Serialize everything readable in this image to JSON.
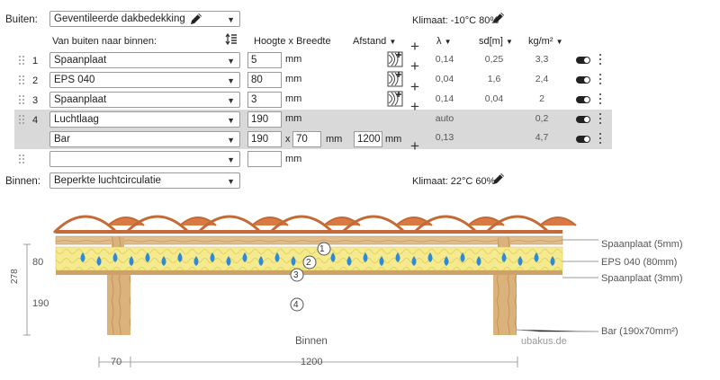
{
  "outside": {
    "label": "Buiten:",
    "value": "Geventileerde dakbedekking",
    "climate": "Klimaat: -10°C 80%"
  },
  "inside": {
    "label": "Binnen:",
    "value": "Beperkte luchtcirculatie",
    "climate": "Klimaat: 22°C 60%"
  },
  "columns": {
    "layers": "Van buiten naar binnen:",
    "size": "Hoogte x Breedte",
    "spacing": "Afstand",
    "lambda": "λ",
    "sd": "sd[m]",
    "density": "kg/m²"
  },
  "layers": [
    {
      "index": "1",
      "material": "Spaanplaat",
      "thickness": "5",
      "unit": "mm",
      "lambda": "0,14",
      "sd": "0,25",
      "density": "3,3"
    },
    {
      "index": "2",
      "material": "EPS 040",
      "thickness": "80",
      "unit": "mm",
      "lambda": "0,04",
      "sd": "1,6",
      "density": "2,4"
    },
    {
      "index": "3",
      "material": "Spaanplaat",
      "thickness": "3",
      "unit": "mm",
      "lambda": "0,14",
      "sd": "0,04",
      "density": "2"
    },
    {
      "index": "4",
      "material": "Luchtlaag",
      "thickness": "190",
      "unit": "mm",
      "lambda": "auto",
      "sd": "",
      "density": "0,2"
    }
  ],
  "bar": {
    "material": "Bar",
    "height": "190",
    "x": "x",
    "width": "70",
    "unit": "mm",
    "spacing": "1200",
    "spacing_unit": "mm",
    "lambda": "0,13",
    "density": "4,7"
  },
  "empty_row": {
    "unit": "mm"
  },
  "drawing": {
    "labels": [
      "Spaanplaat (5mm)",
      "EPS 040 (80mm)",
      "Spaanplaat (3mm)",
      "Bar (190x70mm²)"
    ],
    "markers": [
      "1",
      "2",
      "3",
      "4"
    ],
    "dim_left_total": "278",
    "dim_left_top": "80",
    "dim_left_bottom": "190",
    "inside_label": "Binnen",
    "watermark": "ubakus.de",
    "dim_bottom_bar": "70",
    "dim_bottom_spacing": "1200"
  }
}
